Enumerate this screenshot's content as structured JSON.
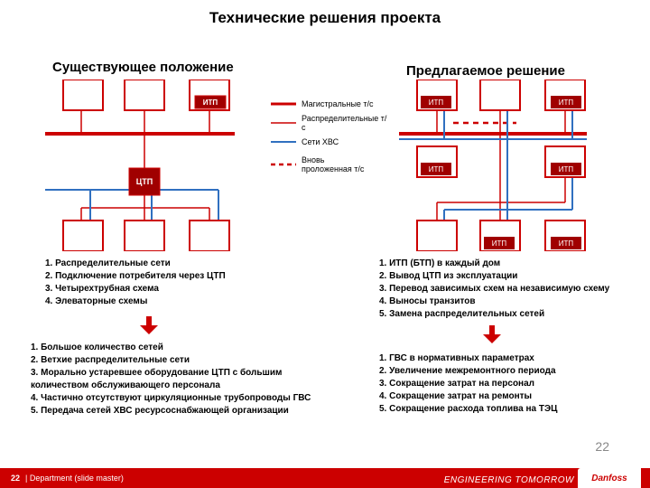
{
  "colors": {
    "brand_red": "#cc0000",
    "dark_red": "#a00000",
    "line_red": "#cc0000",
    "line_blue": "#3070c0",
    "box_stroke": "#cc0000",
    "box_fill_dark": "#a00000",
    "box_fill_light": "#ffffff",
    "text_grey": "#888888"
  },
  "title": "Технические решения проекта",
  "left": {
    "subtitle": "Существующее положение",
    "node_labels": {
      "ctp": "ЦТП",
      "itp": "ИТП"
    },
    "bullets1": [
      "1. Распределительные сети",
      "2. Подключение потребителя через ЦТП",
      "3. Четырехтрубная схема",
      "4. Элеваторные схемы"
    ],
    "bullets2": [
      "1. Большое количество сетей",
      "2. Ветхие распределительные сети",
      "3. Морально устаревшее оборудование ЦТП с большим",
      "    количеством обслуживающего персонала",
      "4.    Частично отсутствуют циркуляционные трубопроводы ГВС",
      "5.    Передача сетей ХВС ресурсоснабжающей организации"
    ]
  },
  "right": {
    "subtitle": "Предлагаемое решение",
    "node_labels": {
      "itp": "ИТП"
    },
    "bullets1": [
      "1. ИТП (БТП) в каждый дом",
      "2. Вывод ЦТП из эксплуатации",
      "3. Перевод зависимых схем на независимую схему",
      "4. Выносы транзитов",
      "5. Замена распределительных сетей"
    ],
    "bullets2": [
      "1. ГВС в нормативных параметрах",
      "2. Увеличение межремонтного периода",
      "3. Сокращение затрат на персонал",
      "4. Сокращение затрат на ремонты",
      "5. Сокращение расхода топлива на ТЭЦ"
    ]
  },
  "legend": {
    "main": "Магистральные т/с",
    "dist": "Распределительные т/с",
    "cold": "Сети ХВС",
    "new": "Вновь проложенная т/с"
  },
  "footer": {
    "page_small": "22",
    "dept": "Department (slide master)",
    "tagline": "ENGINEERING TOMORROW",
    "logo": "Danfoss",
    "page_large": "22"
  }
}
